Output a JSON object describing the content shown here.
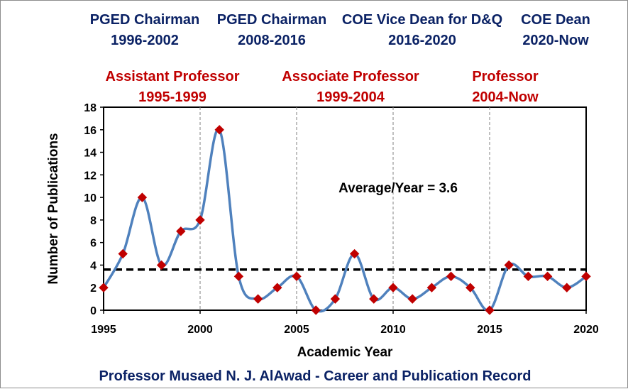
{
  "roles": [
    {
      "title": "PGED Chairman",
      "period": "1996-2002"
    },
    {
      "title": "PGED Chairman",
      "period": "2008-2016"
    },
    {
      "title": "COE Vice Dean for D&Q",
      "period": "2016-2020"
    },
    {
      "title": "COE Dean",
      "period": "2020-Now"
    }
  ],
  "ranks": [
    {
      "title": "Assistant Professor",
      "period": "1995-1999"
    },
    {
      "title": "Associate Professor",
      "period": "1999-2004"
    },
    {
      "title": "Professor",
      "period": "2004-Now"
    }
  ],
  "footer": "Professor Musaed N. J. AlAwad - Career and Publication  Record",
  "colors": {
    "line": "#4f81bd",
    "marker": "#c00000",
    "role_text": "#0b2265",
    "rank_text": "#c00000",
    "average_line": "#000000"
  },
  "chart_data": {
    "type": "line",
    "xlabel": "Academic Year",
    "ylabel": "Number of Publications",
    "xlim": [
      1995,
      2020
    ],
    "ylim": [
      0,
      18
    ],
    "xticks": [
      1995,
      2000,
      2005,
      2010,
      2015,
      2020
    ],
    "yticks": [
      0,
      2,
      4,
      6,
      8,
      10,
      12,
      14,
      16,
      18
    ],
    "grid": "vertical dashed at x-ticks",
    "smoothed": true,
    "series": [
      {
        "x": [
          1995,
          1996,
          1997,
          1998,
          1999,
          2000,
          2001,
          2002,
          2003,
          2004,
          2005,
          2006,
          2007,
          2008,
          2009,
          2010,
          2011,
          2012,
          2013,
          2014,
          2015,
          2016,
          2017,
          2018,
          2019,
          2020
        ],
        "y": [
          2,
          5,
          10,
          4,
          7,
          8,
          16,
          3,
          1,
          2,
          3,
          0,
          1,
          5,
          1,
          2,
          1,
          2,
          3,
          2,
          0,
          4,
          3,
          3,
          2,
          3
        ]
      }
    ],
    "average": {
      "value": 3.6,
      "label": "Average/Year = 3.6"
    }
  }
}
